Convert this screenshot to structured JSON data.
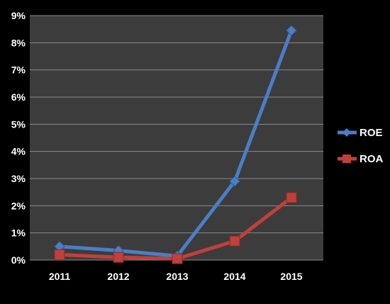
{
  "chart_data": {
    "type": "line",
    "title": "",
    "xlabel": "",
    "ylabel": "",
    "categories": [
      "2011",
      "2012",
      "2013",
      "2014",
      "2015"
    ],
    "ylim": [
      0,
      9
    ],
    "y_ticks": [
      "0%",
      "1%",
      "2%",
      "3%",
      "4%",
      "5%",
      "6%",
      "7%",
      "8%",
      "9%"
    ],
    "grid": true,
    "legend_position": "right",
    "series": [
      {
        "name": "ROE",
        "values": [
          0.5,
          0.35,
          0.15,
          2.9,
          8.45
        ],
        "color": "#4A7EC6",
        "marker": "diamond"
      },
      {
        "name": "ROA",
        "values": [
          0.2,
          0.1,
          0.05,
          0.7,
          2.3
        ],
        "color": "#C0403C",
        "marker": "square"
      }
    ]
  },
  "colors": {
    "background": "#000000",
    "plot_area": "#3C3C3C",
    "gridline": "#8A8A8A"
  }
}
